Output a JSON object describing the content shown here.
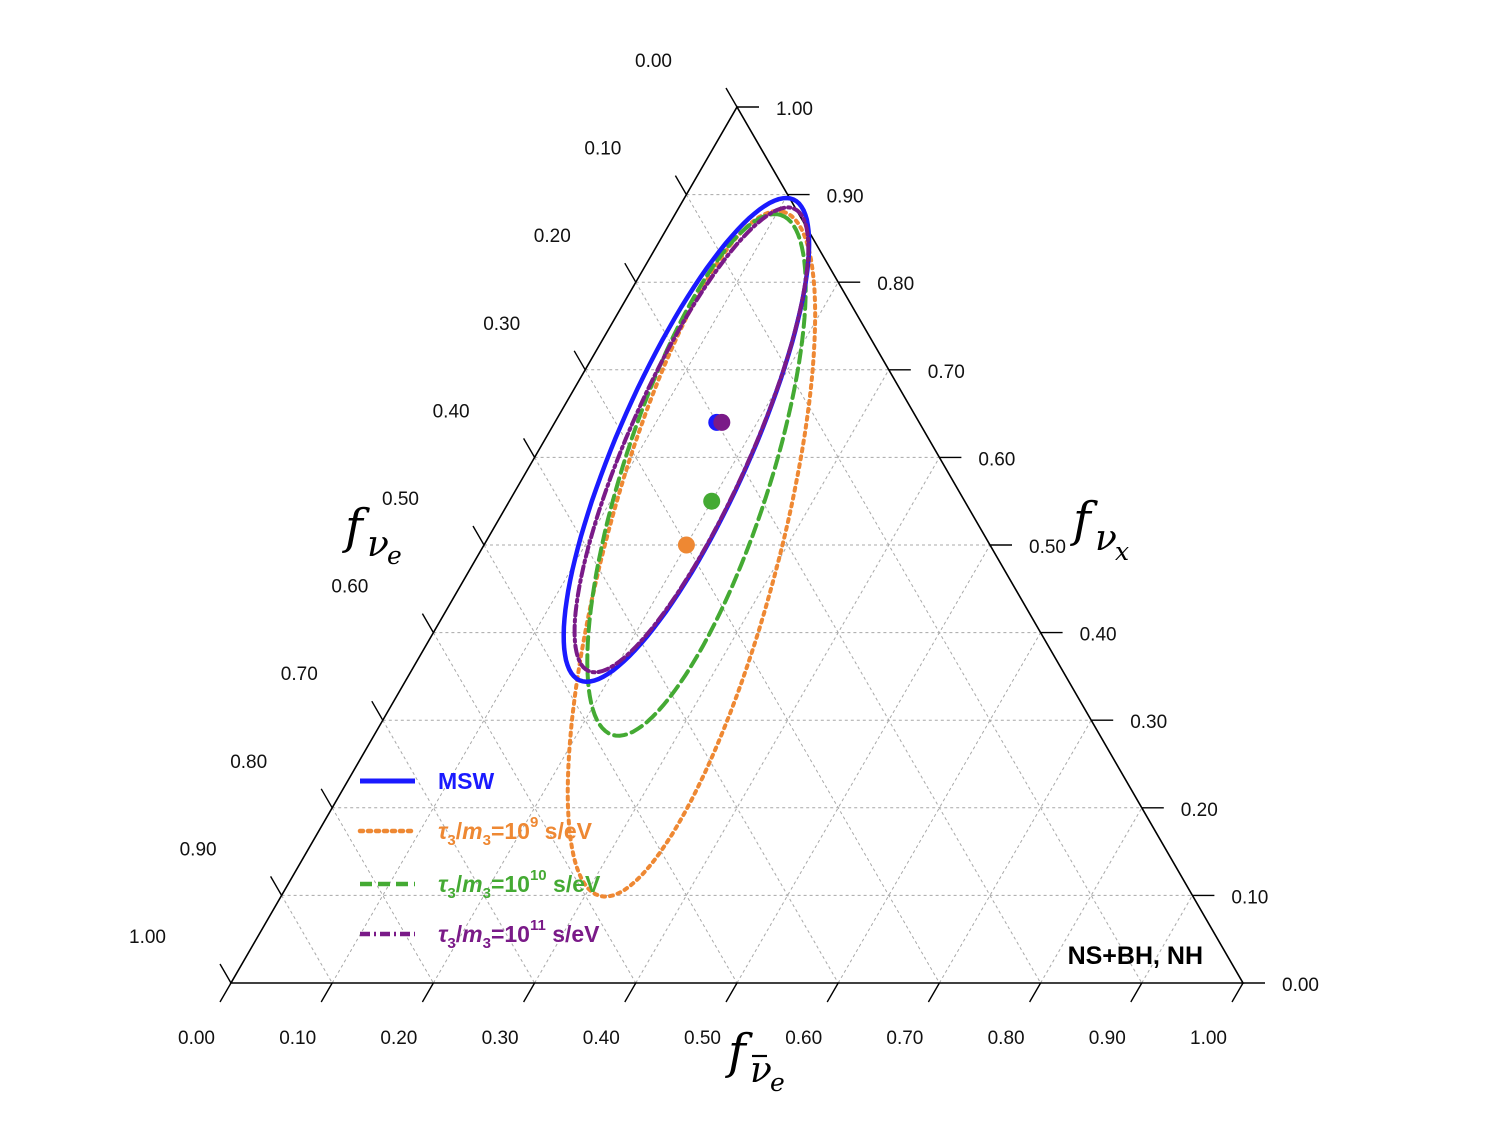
{
  "chart_data": {
    "type": "ternary",
    "axes": {
      "bottom": {
        "name": "f_anti_nu_e",
        "ticks": [
          "0.00",
          "0.10",
          "0.20",
          "0.30",
          "0.40",
          "0.50",
          "0.60",
          "0.70",
          "0.80",
          "0.90",
          "1.00"
        ]
      },
      "left": {
        "name": "f_nu_e",
        "ticks": [
          "0.00",
          "0.10",
          "0.20",
          "0.30",
          "0.40",
          "0.50",
          "0.60",
          "0.70",
          "0.80",
          "0.90",
          "1.00"
        ]
      },
      "right": {
        "name": "f_nu_x",
        "ticks": [
          "0.00",
          "0.10",
          "0.20",
          "0.30",
          "0.40",
          "0.50",
          "0.60",
          "0.70",
          "0.80",
          "0.90",
          "1.00"
        ]
      }
    },
    "grid": true,
    "legend_position": "bottom-left",
    "annotation": "NS+BH, NH",
    "series": [
      {
        "name": "MSW",
        "color": "#1a1aff",
        "style": "solid",
        "point": {
          "f_nu_e": 0.2,
          "f_anti_nu_e": 0.16,
          "f_nu_x": 0.64
        },
        "ellipse": {
          "f_nu_e": 0.24,
          "f_anti_nu_e": 0.14,
          "f_nu_x": 0.62,
          "semi_major": 0.26,
          "semi_minor": 0.065,
          "angle_deg": 66
        }
      },
      {
        "name": "τ3/m3=10^9 s/eV",
        "color": "#ee8833",
        "style": "dotted",
        "point": {
          "f_nu_e": 0.3,
          "f_anti_nu_e": 0.2,
          "f_nu_x": 0.5
        },
        "ellipse": {
          "f_nu_e": 0.3,
          "f_anti_nu_e": 0.21,
          "f_nu_x": 0.49,
          "semi_major": 0.35,
          "semi_minor": 0.085,
          "angle_deg": 75
        }
      },
      {
        "name": "τ3/m3=10^10 s/eV",
        "color": "#44aa33",
        "style": "dashed",
        "point": {
          "f_nu_e": 0.25,
          "f_anti_nu_e": 0.2,
          "f_nu_x": 0.55
        },
        "ellipse": {
          "f_nu_e": 0.25,
          "f_anti_nu_e": 0.17,
          "f_nu_x": 0.58,
          "semi_major": 0.27,
          "semi_minor": 0.072,
          "angle_deg": 72
        }
      },
      {
        "name": "τ3/m3=10^11 s/eV",
        "color": "#7a1a88",
        "style": "dashdot",
        "point": {
          "f_nu_e": 0.195,
          "f_anti_nu_e": 0.165,
          "f_nu_x": 0.64
        },
        "ellipse": {
          "f_nu_e": 0.235,
          "f_anti_nu_e": 0.145,
          "f_nu_x": 0.62,
          "semi_major": 0.25,
          "semi_minor": 0.06,
          "angle_deg": 66
        }
      }
    ]
  },
  "legend": {
    "items": [
      {
        "prefix": "MSW",
        "base": "",
        "exp": "",
        "suffix": ""
      },
      {
        "prefix": "",
        "base": "=10",
        "exp": "9",
        "suffix": " s/eV"
      },
      {
        "prefix": "",
        "base": "=10",
        "exp": "10",
        "suffix": " s/eV"
      },
      {
        "prefix": "",
        "base": "=10",
        "exp": "11",
        "suffix": " s/eV"
      }
    ]
  }
}
